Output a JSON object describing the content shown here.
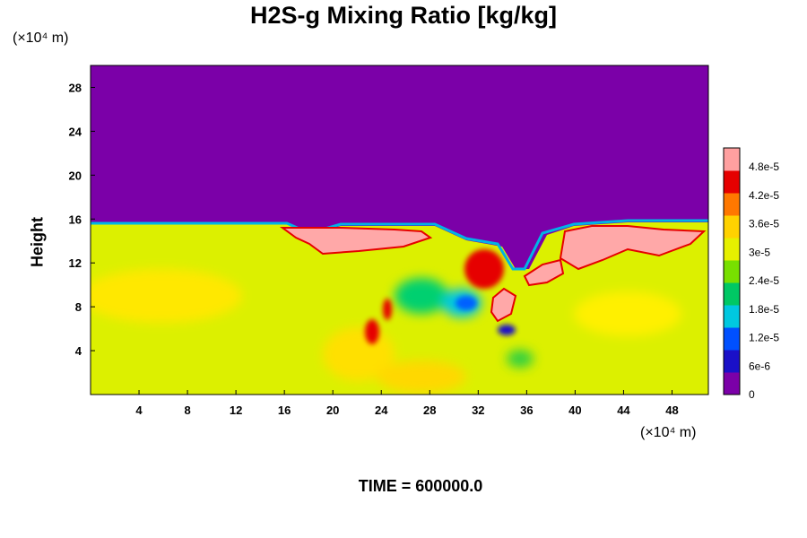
{
  "chart_data": {
    "type": "heatmap",
    "title": "H2S-g Mixing Ratio [kg/kg]",
    "ylabel": "Height",
    "xunit_label": "(×10⁴ m)",
    "yunit_label": "(×10⁴ m)",
    "footer": "TIME = 600000.0",
    "xlim": [
      0,
      51
    ],
    "ylim": [
      0,
      30
    ],
    "x_ticks": [
      "4",
      "8",
      "12",
      "16",
      "20",
      "24",
      "28",
      "32",
      "36",
      "40",
      "44",
      "48"
    ],
    "y_ticks": [
      "4",
      "8",
      "12",
      "16",
      "20",
      "24",
      "28"
    ],
    "colorbar": {
      "min": 0,
      "max": 5.2e-05,
      "tick_labels": [
        "0",
        "6e-6",
        "1.2e-5",
        "1.8e-5",
        "2.4e-5",
        "3e-5",
        "3.6e-5",
        "4.2e-5",
        "4.8e-5"
      ],
      "colors": [
        "#7b00a8",
        "#1a10c8",
        "#0050ff",
        "#00c8e0",
        "#00c864",
        "#78e000",
        "#e6f000",
        "#ffd200",
        "#ff7800",
        "#e60000",
        "#ffa0a0"
      ]
    },
    "field_description_values": {
      "upper_region_value": 0,
      "lower_region_typical": 3.6e-05,
      "interface_height": 15.5
    },
    "grid": false
  }
}
